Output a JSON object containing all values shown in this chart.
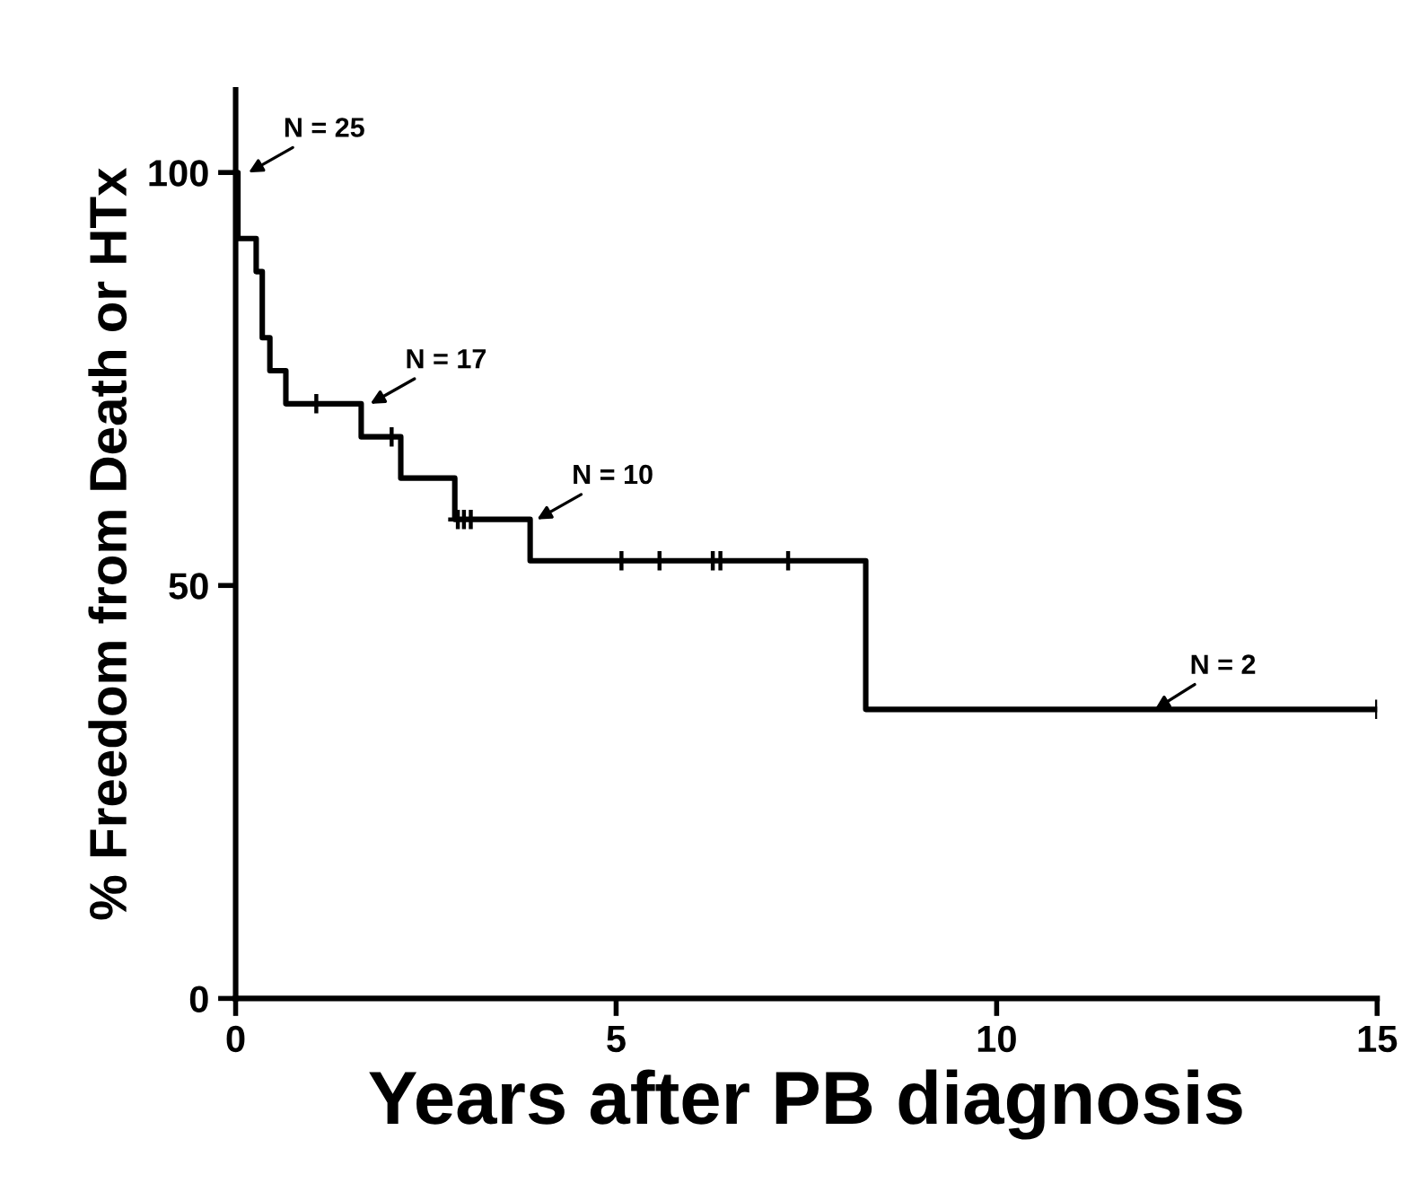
{
  "chart_data": {
    "type": "step",
    "xlabel": "Years after PB diagnosis",
    "ylabel": "% Freedom from Death or HTx",
    "series": [
      {
        "type": "step",
        "color": "#000000",
        "x": [
          0,
          0.03,
          0.27,
          0.35,
          0.45,
          0.66,
          1.65,
          2.17,
          2.88,
          3.87,
          8.28,
          15
        ],
        "values": [
          100,
          92,
          88,
          80,
          76,
          72,
          68,
          63,
          58,
          53,
          35,
          35
        ]
      },
      {
        "type": "scatter",
        "marker": "cross",
        "color": "#000000",
        "x": [
          1.06,
          2.05,
          2.92,
          3.0,
          3.09,
          5.07,
          5.57,
          6.27,
          6.37,
          7.26,
          15
        ],
        "values": [
          72,
          68,
          58,
          58,
          58,
          53,
          53,
          53,
          53,
          53,
          35
        ]
      }
    ],
    "annotations": [
      {
        "text": "N = 25",
        "x": 0.17,
        "y": 100
      },
      {
        "text": "N = 17",
        "x": 1.77,
        "y": 72
      },
      {
        "text": "N = 10",
        "x": 3.96,
        "y": 58
      },
      {
        "text": "N = 2",
        "x": 12.08,
        "y": 35
      }
    ],
    "xlim": [
      0,
      15
    ],
    "ylim": [
      0,
      110
    ],
    "xticks": [
      0,
      5,
      10,
      15
    ],
    "yticks": [
      0,
      50,
      100
    ],
    "grid": false,
    "legend": false
  }
}
